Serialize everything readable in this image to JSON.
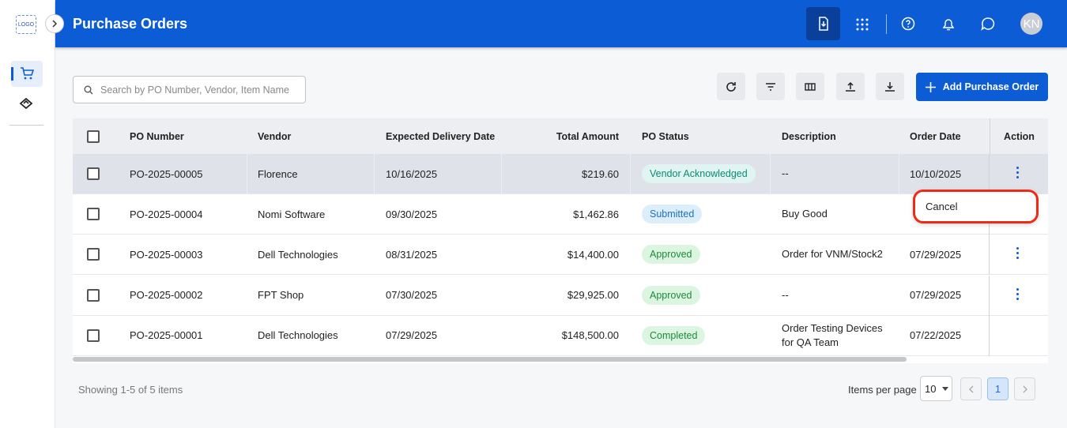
{
  "sidebar": {
    "logo": "LOGO"
  },
  "header": {
    "title": "Purchase Orders",
    "avatar": "KN"
  },
  "toolbar": {
    "search_placeholder": "Search by PO Number, Vendor, Item Name",
    "add_button": "Add Purchase Order"
  },
  "table": {
    "columns": [
      "PO Number",
      "Vendor",
      "Expected Delivery Date",
      "Total Amount",
      "PO Status",
      "Description",
      "Order Date",
      "Action"
    ],
    "rows": [
      {
        "po_number": "PO-2025-00005",
        "vendor": "Florence",
        "expected_delivery": "10/16/2025",
        "total": "$219.60",
        "status": "Vendor Acknowledged",
        "description": "--",
        "order_date": "10/10/2025"
      },
      {
        "po_number": "PO-2025-00004",
        "vendor": "Nomi Software",
        "expected_delivery": "09/30/2025",
        "total": "$1,462.86",
        "status": "Submitted",
        "description": "Buy Good"
      },
      {
        "po_number": "PO-2025-00003",
        "vendor": "Dell Technologies",
        "expected_delivery": "08/31/2025",
        "total": "$14,400.00",
        "status": "Approved",
        "description": "Order for VNM/Stock2",
        "order_date": "07/29/2025"
      },
      {
        "po_number": "PO-2025-00002",
        "vendor": "FPT Shop",
        "expected_delivery": "07/30/2025",
        "total": "$29,925.00",
        "status": "Approved",
        "description": "--",
        "order_date": "07/29/2025"
      },
      {
        "po_number": "PO-2025-00001",
        "vendor": "Dell Technologies",
        "expected_delivery": "07/29/2025",
        "total": "$148,500.00",
        "status": "Completed",
        "description": "Order Testing Devices for QA Team",
        "order_date": "07/22/2025"
      }
    ]
  },
  "menu": {
    "items": [
      "Cancel"
    ]
  },
  "footer": {
    "summary": "Showing 1-5 of 5 items",
    "items_per_page_label": "Items per page",
    "items_per_page": "10",
    "page": "1"
  }
}
